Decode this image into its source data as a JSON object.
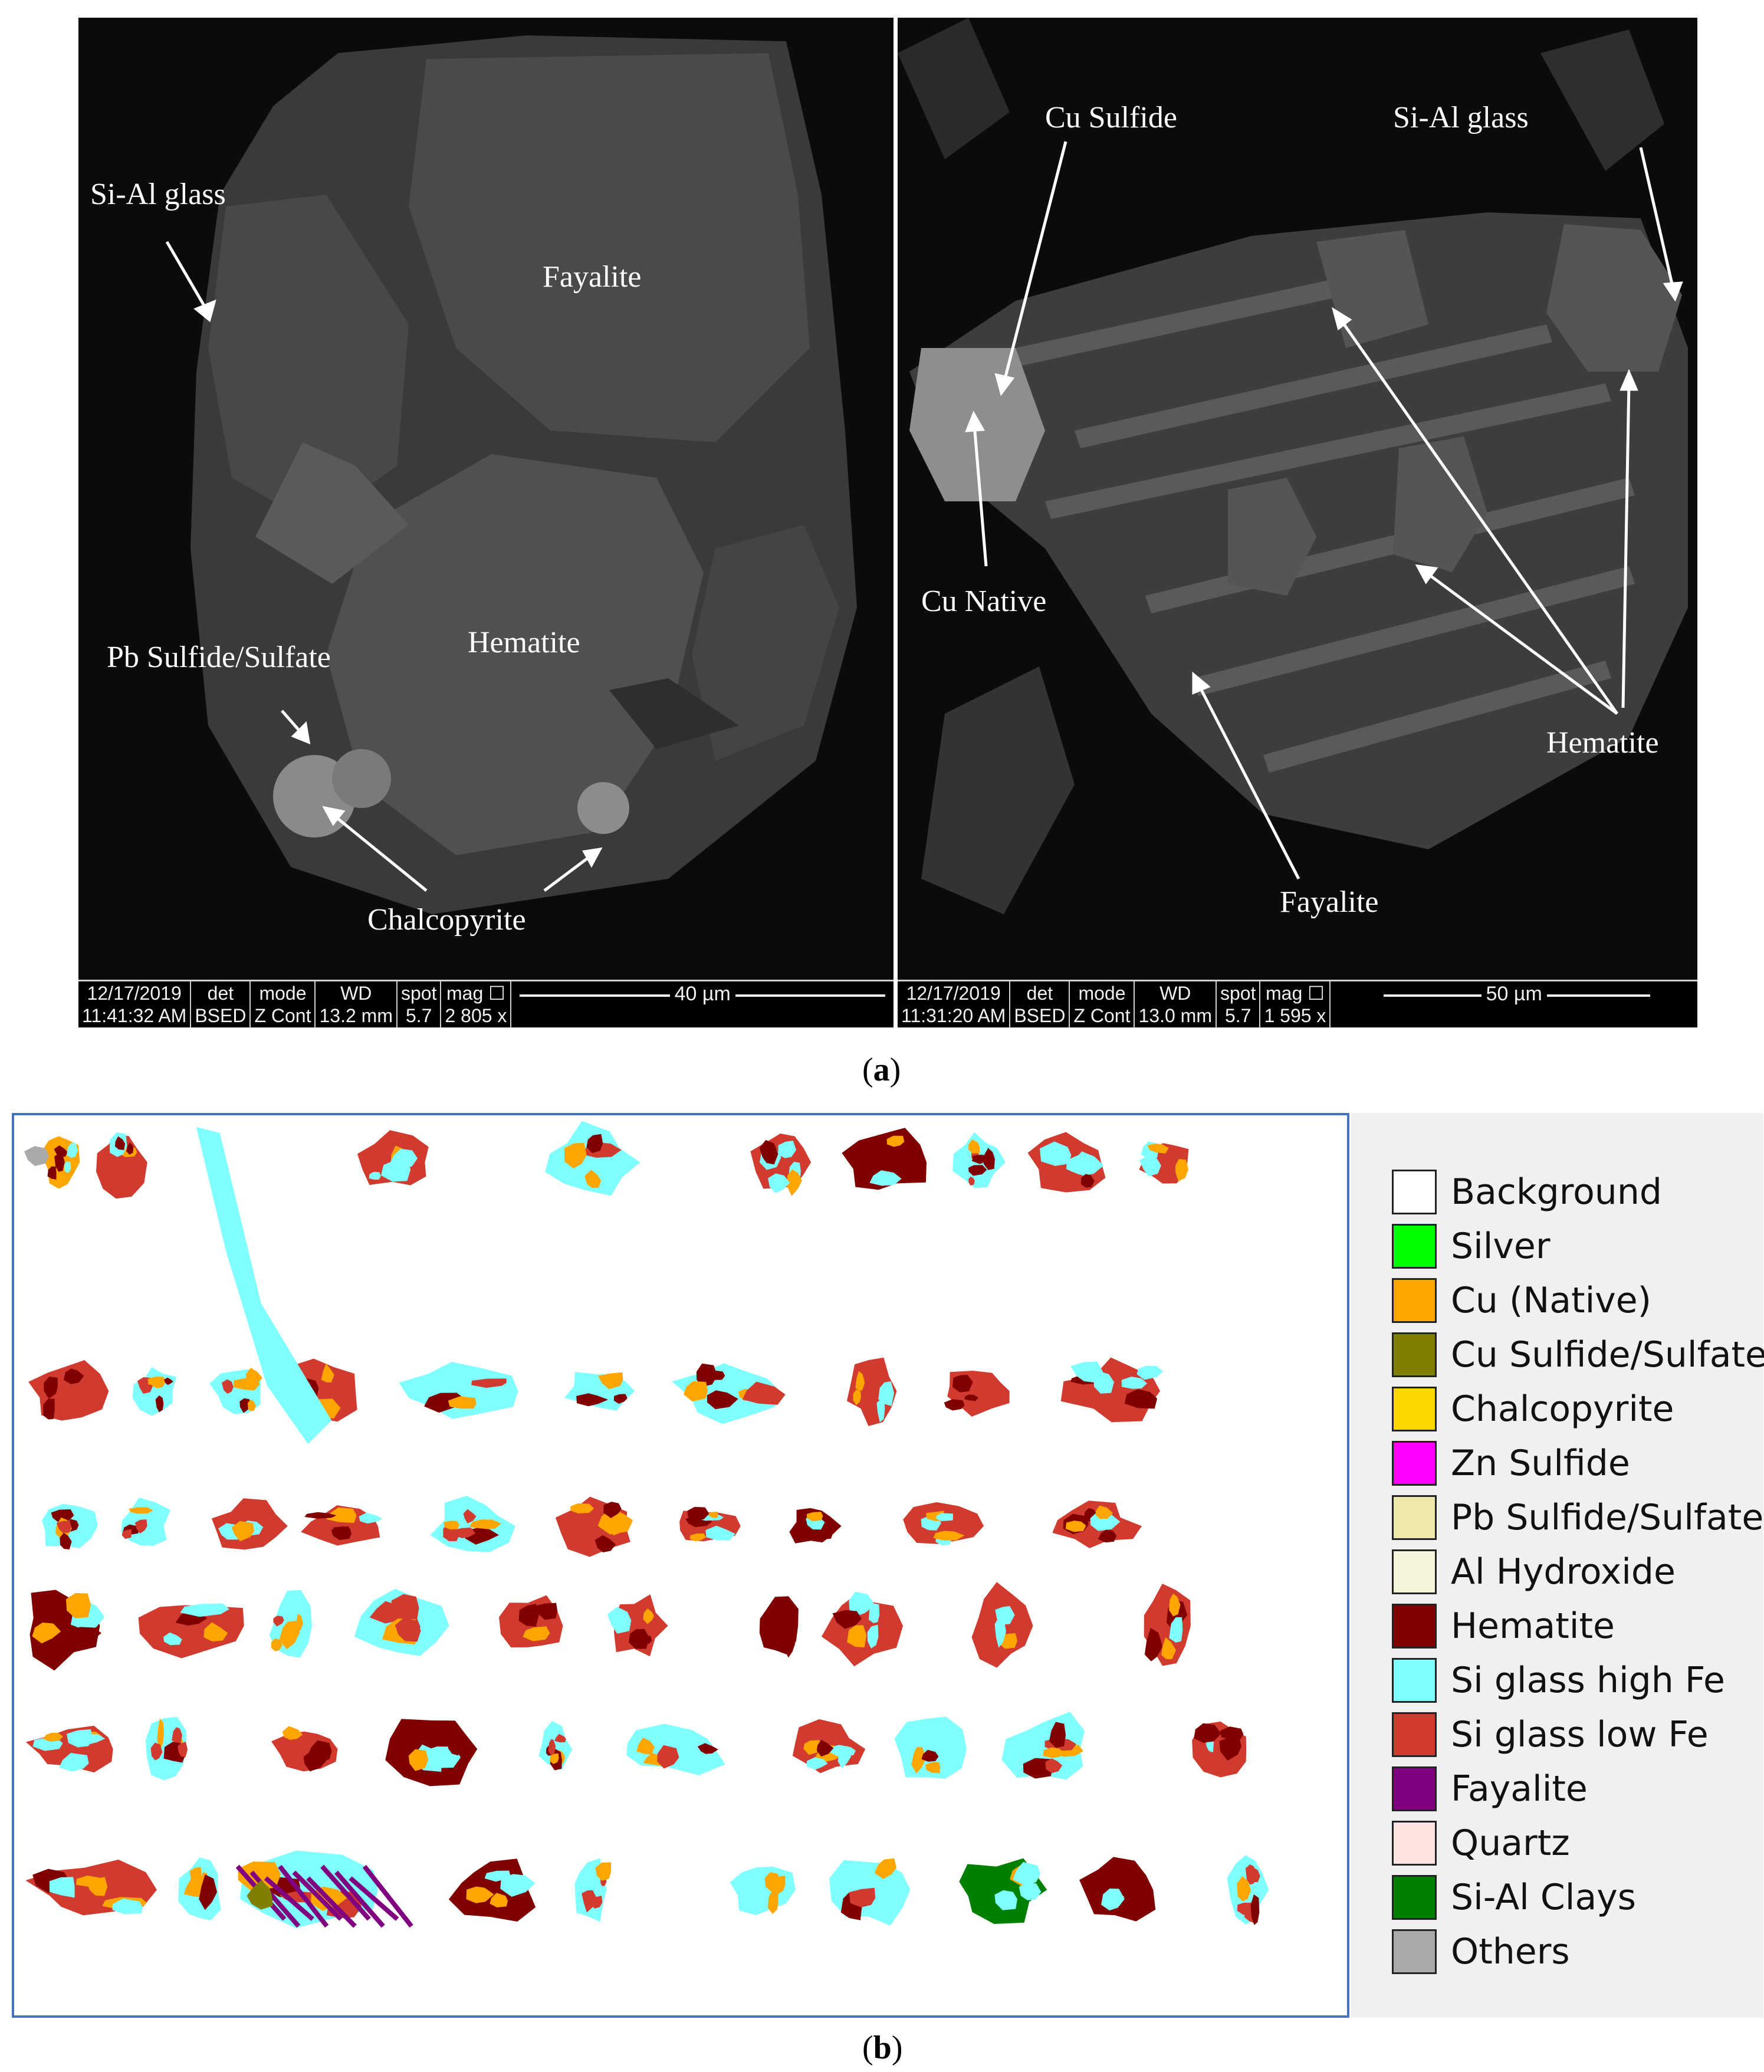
{
  "figure": {
    "panel_a": {
      "left": {
        "labels": {
          "si_al_glass": "Si-Al glass",
          "fayalite": "Fayalite",
          "hematite": "Hematite",
          "pb_sulfide": "Pb Sulfide/Sulfate",
          "chalcopyrite": "Chalcopyrite"
        },
        "infobar": {
          "date": "12/17/2019",
          "time": "11:41:32 AM",
          "det_header": "det",
          "det": "BSED",
          "mode_header": "mode",
          "mode": "Z Cont",
          "wd_header": "WD",
          "wd": "13.2 mm",
          "spot_header": "spot",
          "spot": "5.7",
          "mag_header": "mag ☐",
          "mag": "2 805 x",
          "scale": "40 µm"
        }
      },
      "right": {
        "labels": {
          "cu_sulfide": "Cu Sulfide",
          "si_al_glass": "Si-Al glass",
          "cu_native": "Cu Native",
          "hematite": "Hematite",
          "fayalite": "Fayalite"
        },
        "infobar": {
          "date": "12/17/2019",
          "time": "11:31:20 AM",
          "det_header": "det",
          "det": "BSED",
          "mode_header": "mode",
          "mode": "Z Cont",
          "wd_header": "WD",
          "wd": "13.0 mm",
          "spot_header": "spot",
          "spot": "5.7",
          "mag_header": "mag ☐",
          "mag": "1 595 x",
          "scale": "50 µm"
        }
      },
      "caption_open": "(",
      "caption_letter": "a",
      "caption_close": ")"
    },
    "panel_b": {
      "caption_open": "(",
      "caption_letter": "b",
      "caption_close": ")",
      "legend": [
        {
          "label": "Background",
          "color": "#ffffff"
        },
        {
          "label": "Silver",
          "color": "#00ff00"
        },
        {
          "label": "Cu (Native)",
          "color": "#ffa500"
        },
        {
          "label": "Cu Sulfide/Sulfate",
          "color": "#808000"
        },
        {
          "label": "Chalcopyrite",
          "color": "#ffd700"
        },
        {
          "label": "Zn Sulfide",
          "color": "#ff00ff"
        },
        {
          "label": "Pb Sulfide/Sulfate",
          "color": "#eee8aa"
        },
        {
          "label": "Al Hydroxide",
          "color": "#f5f5dc"
        },
        {
          "label": "Hematite",
          "color": "#800000"
        },
        {
          "label": "Si glass high Fe",
          "color": "#7fffff"
        },
        {
          "label": "Si glass low Fe",
          "color": "#d13a2e"
        },
        {
          "label": "Fayalite",
          "color": "#800080"
        },
        {
          "label": "Quartz",
          "color": "#ffe4e1"
        },
        {
          "label": "Si-Al Clays",
          "color": "#008000"
        },
        {
          "label": "Others",
          "color": "#a9a9a9"
        }
      ]
    }
  }
}
